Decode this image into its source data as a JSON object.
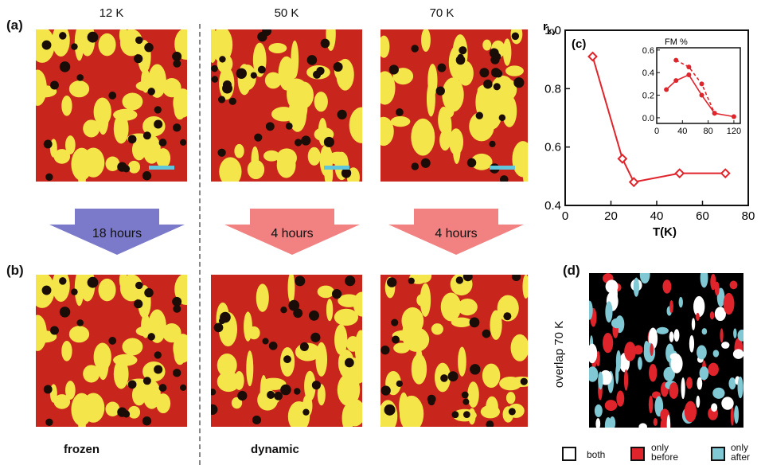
{
  "panel_labels": {
    "a": "(a)",
    "b": "(b)",
    "c": "(c)",
    "d": "(d)"
  },
  "temperatures": [
    "12 K",
    "50 K",
    "70 K"
  ],
  "arrows": [
    {
      "label": "18 hours",
      "color": "#7b79c9"
    },
    {
      "label": "4 hours",
      "color": "#f28282"
    },
    {
      "label": "4 hours",
      "color": "#f28282"
    }
  ],
  "captions": {
    "frozen": "frozen",
    "dynamic": "dynamic"
  },
  "overlap_label": "overlap 70 K",
  "legend": [
    {
      "label": "both",
      "color": "#ffffff"
    },
    {
      "label": "only before",
      "color": "#e0242c"
    },
    {
      "label": "only after",
      "color": "#7fc8d4"
    }
  ],
  "colors": {
    "map_red": "#c8261c",
    "map_yellow": "#f4e64a",
    "map_dark": "#1a0d08",
    "scale_bar": "#5fc6dc",
    "chart_red": "#e0242c"
  },
  "chart_data": {
    "type": "line",
    "ylabel_main": "r",
    "ylabel_sub": "xy",
    "xlabel": "T(K)",
    "xlim": [
      0,
      80
    ],
    "ylim": [
      0.4,
      1.0
    ],
    "x_ticks": [
      "0",
      "20",
      "40",
      "60",
      "80"
    ],
    "y_ticks": [
      "0.4",
      "0.6",
      "0.8",
      "1.0"
    ],
    "x": [
      12,
      25,
      30,
      50,
      70
    ],
    "y": [
      0.91,
      0.56,
      0.48,
      0.51,
      0.51
    ],
    "inset": {
      "type": "line",
      "title": "FM %",
      "xlim": [
        0,
        130
      ],
      "ylim": [
        -0.05,
        0.62
      ],
      "x_ticks": [
        "0",
        "40",
        "80",
        "120"
      ],
      "y_ticks": [
        "0.0",
        "0.2",
        "0.4",
        "0.6"
      ],
      "series": [
        {
          "x": [
            15,
            30,
            50,
            70,
            90,
            120
          ],
          "y": [
            0.25,
            0.33,
            0.38,
            0.2,
            0.04,
            0.01
          ],
          "style": "solid"
        },
        {
          "x": [
            30,
            50,
            70,
            90
          ],
          "y": [
            0.51,
            0.45,
            0.3,
            0.04
          ],
          "style": "dashed"
        }
      ]
    }
  }
}
